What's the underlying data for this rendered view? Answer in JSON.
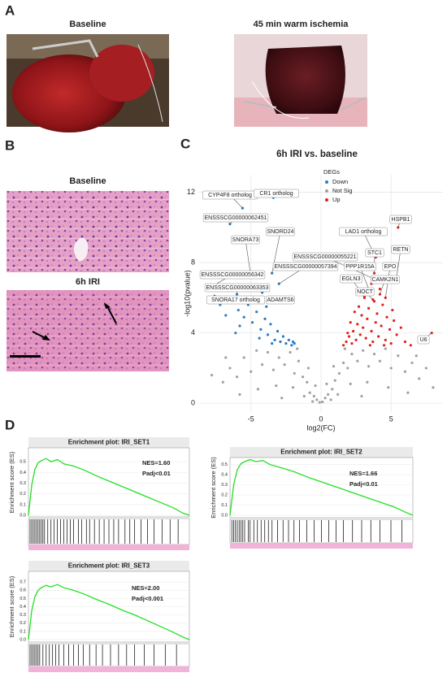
{
  "panel_labels": [
    "A",
    "B",
    "C",
    "D"
  ],
  "photos": {
    "baseline": "Baseline",
    "ischemia": "45 min warm ischemia"
  },
  "histology": {
    "baseline": "Baseline",
    "iri": "6h IRI"
  },
  "chart_data": [
    {
      "type": "scatter",
      "title": "6h IRI vs. baseline",
      "x_label": "log2(FC)",
      "y_label": "-log10(pvalue)",
      "legend_title": "DEGs",
      "legend": "top-right",
      "grid": true,
      "xlim": [
        -8.7,
        8.7
      ],
      "ylim": [
        -0.5,
        13
      ],
      "xticks": [
        -5,
        0,
        5
      ],
      "yticks": [
        0,
        4,
        8,
        12
      ],
      "series": [
        {
          "name": "Down",
          "color": "#2b7bc4",
          "x": [
            -7.2,
            -6.8,
            -6.3,
            -5.9,
            -5.5,
            -5.2,
            -4.9,
            -4.6,
            -4.3,
            -4.0,
            -3.8,
            -3.6,
            -3.3,
            -3.1,
            -2.9,
            -2.7,
            -2.5,
            -2.3,
            -2.1,
            -1.9,
            -4.7,
            -3.9,
            -5.8,
            -6.1,
            -4.4,
            -3.5,
            -2.0,
            -5.0,
            -4.2,
            -7.6,
            -5.6,
            -3.4,
            -6.5,
            -3.5,
            -5.0,
            -3.0,
            -7.9,
            -6.0,
            -6.6,
            -3.0
          ],
          "values": [
            5.6,
            5.0,
            5.9,
            5.3,
            4.9,
            5.6,
            4.6,
            5.2,
            4.2,
            4.8,
            3.9,
            4.5,
            3.6,
            4.1,
            3.5,
            3.8,
            3.4,
            3.6,
            3.3,
            3.4,
            6.0,
            5.5,
            4.4,
            4.0,
            3.7,
            3.4,
            3.5,
            6.5,
            6.3,
            6.1,
            11.1,
            11.7,
            10.2,
            7.4,
            7.2,
            6.8,
            6.6,
            6.2,
            5.8,
            5.9
          ]
        },
        {
          "name": "Not Sig",
          "color": "#a0a0a0",
          "x": [
            -7.8,
            -7.0,
            -6.5,
            -6.0,
            -5.5,
            -5.0,
            -4.6,
            -4.2,
            -3.8,
            -3.4,
            -3.0,
            -2.6,
            -2.2,
            -1.9,
            -1.6,
            -1.3,
            -1.0,
            -0.8,
            -0.5,
            -0.3,
            -0.1,
            0.1,
            0.3,
            0.5,
            0.8,
            1.0,
            1.3,
            1.6,
            1.9,
            2.2,
            2.6,
            3.0,
            3.4,
            3.8,
            4.2,
            4.6,
            5.0,
            5.5,
            6.0,
            6.5,
            7.0,
            7.5,
            8.0,
            -1.2,
            -2.0,
            -3.2,
            -4.5,
            -5.8,
            1.2,
            2.1,
            3.3,
            4.8,
            6.2,
            -0.6,
            0.7,
            -2.8,
            2.9,
            -1.7,
            1.7,
            -0.9,
            0.9,
            -0.4,
            0.4,
            -6.8,
            6.8
          ],
          "values": [
            1.6,
            1.2,
            2.0,
            1.5,
            2.6,
            1.8,
            3.0,
            2.2,
            2.9,
            1.9,
            2.6,
            2.2,
            2.9,
            1.7,
            2.4,
            1.5,
            1.2,
            0.6,
            0.4,
            0.2,
            0.05,
            0.08,
            0.3,
            0.5,
            0.8,
            1.3,
            1.7,
            2.3,
            2.0,
            2.8,
            2.4,
            3.0,
            2.1,
            2.8,
            2.4,
            3.1,
            2.0,
            2.7,
            1.8,
            2.3,
            1.4,
            2.0,
            0.9,
            0.4,
            0.9,
            1.0,
            0.8,
            0.5,
            0.5,
            1.1,
            1.2,
            0.9,
            0.6,
            0.1,
            0.2,
            0.3,
            0.4,
            3.1,
            3.1,
            2.0,
            2.1,
            1.0,
            1.1,
            2.6,
            2.7
          ]
        },
        {
          "name": "Up",
          "color": "#e3201c",
          "x": [
            1.6,
            1.8,
            2.0,
            2.2,
            2.3,
            2.5,
            2.6,
            2.8,
            2.9,
            3.0,
            3.2,
            3.3,
            3.4,
            3.6,
            3.7,
            3.9,
            4.0,
            4.1,
            4.3,
            4.4,
            4.6,
            4.7,
            4.9,
            5.0,
            5.2,
            5.4,
            5.7,
            6.0,
            2.1,
            2.7,
            3.1,
            3.5,
            3.8,
            4.5,
            1.9,
            2.4,
            5.1,
            4.2,
            3.6,
            6.4,
            5.5,
            3.9,
            5.4,
            3.8,
            4.0,
            3.5,
            4.6,
            3.1,
            4.2,
            3.7,
            7.9
          ],
          "values": [
            3.3,
            3.5,
            3.8,
            3.4,
            4.1,
            3.6,
            4.5,
            3.9,
            5.0,
            4.3,
            3.7,
            4.8,
            5.4,
            4.1,
            3.5,
            4.6,
            5.1,
            3.8,
            4.4,
            5.6,
            3.6,
            4.9,
            4.2,
            3.4,
            4.7,
            3.9,
            4.3,
            3.5,
            4.6,
            5.5,
            6.0,
            3.3,
            5.8,
            3.3,
            4.0,
            5.2,
            5.3,
            6.5,
            6.8,
            3.3,
            10.0,
            8.3,
            7.2,
            7.4,
            7.0,
            6.3,
            6.0,
            6.1,
            6.2,
            5.9,
            4.0
          ]
        }
      ],
      "annotations": [
        {
          "text": "CYP4F8 ortholog",
          "x": -5.6,
          "y": 11.1
        },
        {
          "text": "CR1 ortholog",
          "x": -3.4,
          "y": 11.7
        },
        {
          "text": "ENSSSCG00000062451",
          "x": -6.5,
          "y": 10.2
        },
        {
          "text": "SNORD24",
          "x": -3.5,
          "y": 7.4
        },
        {
          "text": "SNORA73",
          "x": -5.0,
          "y": 7.2
        },
        {
          "text": "ENSSSCG00000057394",
          "x": -3.0,
          "y": 6.8
        },
        {
          "text": "ENSSSCG00000056342",
          "x": -7.9,
          "y": 6.6
        },
        {
          "text": "ENSSSCG00000063353",
          "x": -6.0,
          "y": 6.2
        },
        {
          "text": "SNORA17 ortholog",
          "x": -6.6,
          "y": 5.8
        },
        {
          "text": "ADAMTS6",
          "x": -3.0,
          "y": 5.9
        },
        {
          "text": "HSPB1",
          "x": 5.5,
          "y": 10.0
        },
        {
          "text": "LAD1 ortholog",
          "x": 3.9,
          "y": 8.3
        },
        {
          "text": "RETN",
          "x": 5.4,
          "y": 7.2
        },
        {
          "text": "STC1",
          "x": 3.8,
          "y": 7.4
        },
        {
          "text": "ENSSSCG00000055221",
          "x": 4.0,
          "y": 7.0
        },
        {
          "text": "PPP1R15A",
          "x": 3.5,
          "y": 6.3
        },
        {
          "text": "EPO",
          "x": 4.6,
          "y": 6.0
        },
        {
          "text": "EGLN3",
          "x": 3.1,
          "y": 6.1
        },
        {
          "text": "CAMK2N1",
          "x": 4.2,
          "y": 6.2
        },
        {
          "text": "NOCT",
          "x": 3.7,
          "y": 5.9
        },
        {
          "text": "U6",
          "x": 7.9,
          "y": 4.0
        }
      ]
    },
    {
      "type": "line",
      "title": "Enrichment plot: IRI_SET1",
      "y_label": "Enrichment score (ES)",
      "annotations": [
        "NES=1.60",
        "Padj<0.01"
      ],
      "color": "#22e022",
      "xlim": [
        0,
        100
      ],
      "ylim": [
        -0.015,
        0.63
      ],
      "yticks": [
        {
          "value": 0,
          "label": "0.0"
        },
        0.1,
        0.2,
        0.3,
        0.4,
        0.5
      ],
      "x": [
        0,
        2,
        4,
        6,
        8,
        11,
        14,
        18,
        22,
        28,
        35,
        42,
        50,
        58,
        66,
        74,
        82,
        90,
        96,
        100
      ],
      "values": [
        0,
        0.28,
        0.43,
        0.49,
        0.51,
        0.53,
        0.5,
        0.52,
        0.48,
        0.46,
        0.42,
        0.37,
        0.32,
        0.27,
        0.22,
        0.17,
        0.12,
        0.07,
        0.02,
        0
      ],
      "hits": [
        1,
        2,
        3,
        4,
        5,
        6,
        7,
        8,
        9,
        10,
        12,
        14,
        16,
        18,
        20,
        22,
        24,
        26,
        28,
        31,
        33,
        36,
        38,
        41,
        44,
        47,
        50,
        53,
        56,
        60,
        63,
        66,
        70,
        74,
        78,
        83,
        88,
        93
      ]
    },
    {
      "type": "line",
      "title": "Enrichment plot: IRI_SET2",
      "y_label": "Enrichment score (ES)",
      "annotations": [
        "NES=1.66",
        "Padj<0.01"
      ],
      "color": "#22e022",
      "xlim": [
        0,
        100
      ],
      "ylim": [
        -0.024,
        0.57
      ],
      "yticks": [
        {
          "value": 0,
          "label": "0.0"
        },
        0.1,
        0.2,
        0.3,
        0.4,
        0.5
      ],
      "x": [
        0,
        2,
        4,
        6,
        8,
        11,
        14,
        18,
        22,
        28,
        35,
        42,
        50,
        58,
        66,
        74,
        82,
        90,
        96,
        100
      ],
      "values": [
        0,
        0.3,
        0.45,
        0.51,
        0.53,
        0.55,
        0.53,
        0.54,
        0.5,
        0.47,
        0.43,
        0.38,
        0.33,
        0.28,
        0.23,
        0.18,
        0.13,
        0.08,
        0.03,
        0
      ],
      "hits": [
        1,
        2,
        3,
        4,
        5,
        6,
        7,
        8,
        10,
        11,
        13,
        15,
        17,
        19,
        21,
        23,
        26,
        29,
        32,
        35,
        38,
        42,
        46,
        50,
        54,
        58,
        62,
        67,
        72,
        77,
        82,
        88,
        94
      ]
    },
    {
      "type": "line",
      "title": "Enrichment plot: IRI_SET3",
      "y_label": "Enrichment score (ES)",
      "annotations": [
        "NES=2.00",
        "Padj<0.001"
      ],
      "color": "#22e022",
      "xlim": [
        0,
        100
      ],
      "ylim": [
        -0.03,
        0.83
      ],
      "yticks": [
        {
          "value": 0,
          "label": "0.0"
        },
        0.1,
        0.2,
        0.3,
        0.4,
        0.5,
        0.6,
        0.7
      ],
      "x": [
        0,
        2,
        4,
        6,
        8,
        11,
        14,
        18,
        22,
        28,
        35,
        42,
        50,
        58,
        66,
        74,
        82,
        90,
        96,
        100
      ],
      "values": [
        0,
        0.35,
        0.52,
        0.6,
        0.63,
        0.66,
        0.64,
        0.67,
        0.63,
        0.6,
        0.55,
        0.49,
        0.43,
        0.36,
        0.3,
        0.23,
        0.16,
        0.09,
        0.03,
        0
      ],
      "hits": [
        1,
        2,
        3,
        4,
        5,
        6,
        7,
        9,
        11,
        13,
        15,
        17,
        19,
        22,
        25,
        28,
        31,
        34,
        38,
        42,
        46,
        51,
        56,
        61,
        66,
        72,
        78,
        85,
        92
      ]
    }
  ]
}
